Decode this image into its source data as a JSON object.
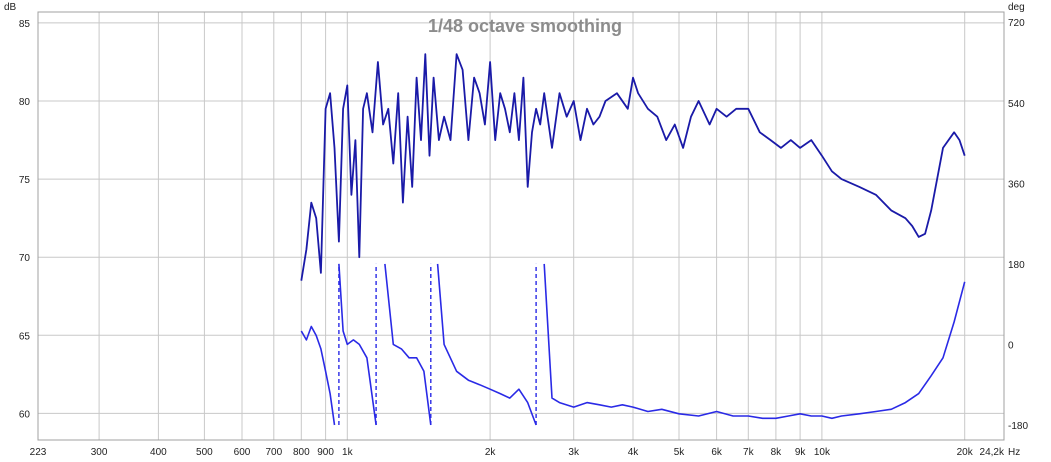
{
  "chart_data": {
    "type": "line",
    "title": "1/48 octave smoothing",
    "left_unit": "dB",
    "right_unit": "deg",
    "x_unit": "Hz",
    "x_scale": "log",
    "xlim": [
      223,
      24200
    ],
    "ylim_left": [
      58.3,
      85.7
    ],
    "ylim_right": [
      -213.6,
      742.8
    ],
    "left_ticks": [
      {
        "value": 60,
        "label": "60"
      },
      {
        "value": 65,
        "label": "65"
      },
      {
        "value": 70,
        "label": "70"
      },
      {
        "value": 75,
        "label": "75"
      },
      {
        "value": 80,
        "label": "80"
      },
      {
        "value": 85,
        "label": "85"
      }
    ],
    "right_ticks": [
      {
        "value": -180,
        "label": "-180"
      },
      {
        "value": 0,
        "label": "0"
      },
      {
        "value": 180,
        "label": "180"
      },
      {
        "value": 360,
        "label": "360"
      },
      {
        "value": 540,
        "label": "540"
      },
      {
        "value": 720,
        "label": "720"
      }
    ],
    "x_ticks": [
      {
        "value": 223,
        "label": "223"
      },
      {
        "value": 300,
        "label": "300"
      },
      {
        "value": 400,
        "label": "400"
      },
      {
        "value": 500,
        "label": "500"
      },
      {
        "value": 600,
        "label": "600"
      },
      {
        "value": 700,
        "label": "700"
      },
      {
        "value": 800,
        "label": "800"
      },
      {
        "value": 900,
        "label": "900"
      },
      {
        "value": 1000,
        "label": "1k"
      },
      {
        "value": 2000,
        "label": "2k"
      },
      {
        "value": 3000,
        "label": "3k"
      },
      {
        "value": 4000,
        "label": "4k"
      },
      {
        "value": 5000,
        "label": "5k"
      },
      {
        "value": 6000,
        "label": "6k"
      },
      {
        "value": 7000,
        "label": "7k"
      },
      {
        "value": 8000,
        "label": "8k"
      },
      {
        "value": 9000,
        "label": "9k"
      },
      {
        "value": 10000,
        "label": "10k"
      },
      {
        "value": 20000,
        "label": "20k"
      },
      {
        "value": 24200,
        "label": "24,2k"
      }
    ],
    "grid": true,
    "colors": {
      "magnitude": "#1a1aa8",
      "phase": "#2a2ae6",
      "grid": "#c8c8c8",
      "frame": "#a0a0a0"
    },
    "series": [
      {
        "id": "magnitude",
        "axis": "left",
        "x": [
          800,
          820,
          840,
          860,
          880,
          900,
          920,
          940,
          960,
          980,
          1000,
          1020,
          1040,
          1060,
          1080,
          1100,
          1130,
          1160,
          1190,
          1220,
          1250,
          1280,
          1310,
          1340,
          1370,
          1400,
          1430,
          1460,
          1490,
          1520,
          1560,
          1600,
          1650,
          1700,
          1750,
          1800,
          1850,
          1900,
          1950,
          2000,
          2050,
          2100,
          2150,
          2200,
          2250,
          2300,
          2350,
          2400,
          2450,
          2500,
          2550,
          2600,
          2700,
          2800,
          2900,
          3000,
          3100,
          3200,
          3300,
          3400,
          3500,
          3700,
          3900,
          4000,
          4100,
          4300,
          4500,
          4700,
          4900,
          5100,
          5300,
          5500,
          5800,
          6000,
          6300,
          6600,
          7000,
          7400,
          7800,
          8200,
          8600,
          9000,
          9500,
          10000,
          10500,
          11000,
          12000,
          13000,
          14000,
          15000,
          15500,
          16000,
          16500,
          17000,
          18000,
          19000,
          19500,
          20000
        ],
        "y": [
          68.5,
          70.5,
          73.5,
          72.5,
          69.0,
          79.5,
          80.5,
          77.0,
          71.0,
          79.5,
          81.0,
          74.0,
          77.5,
          70.0,
          79.5,
          80.5,
          78.0,
          82.5,
          78.5,
          79.5,
          76.0,
          80.5,
          73.5,
          79.0,
          74.5,
          81.5,
          77.5,
          83.0,
          76.5,
          81.5,
          77.5,
          79.0,
          77.5,
          83.0,
          82.0,
          77.5,
          81.5,
          80.5,
          78.5,
          82.5,
          77.5,
          80.5,
          79.5,
          78.0,
          80.5,
          77.5,
          81.5,
          74.5,
          78.0,
          79.5,
          78.5,
          80.5,
          77.0,
          80.5,
          79.0,
          80.0,
          77.5,
          79.5,
          78.5,
          79.0,
          80.0,
          80.5,
          79.5,
          81.5,
          80.5,
          79.5,
          79.0,
          77.5,
          78.5,
          77.0,
          79.0,
          80.0,
          78.5,
          79.5,
          79.0,
          79.5,
          79.5,
          78.0,
          77.5,
          77.0,
          77.5,
          77.0,
          77.5,
          76.5,
          75.5,
          75.0,
          74.5,
          74.0,
          73.0,
          72.5,
          72.0,
          71.3,
          71.5,
          73.0,
          77.0,
          78.0,
          77.5,
          76.5
        ]
      },
      {
        "id": "phase",
        "axis": "right",
        "style": "solid-with-dashed-wraps",
        "x": [
          800,
          820,
          840,
          860,
          880,
          900,
          920,
          940,
          960,
          980,
          1000,
          1030,
          1060,
          1100,
          1150,
          1200,
          1250,
          1300,
          1350,
          1400,
          1450,
          1500,
          1550,
          1600,
          1700,
          1800,
          1900,
          2000,
          2100,
          2200,
          2300,
          2400,
          2500,
          2600,
          2700,
          2800,
          3000,
          3200,
          3400,
          3600,
          3800,
          4000,
          4300,
          4600,
          5000,
          5500,
          6000,
          6500,
          7000,
          7500,
          8000,
          8500,
          9000,
          9500,
          10000,
          10500,
          11000,
          12000,
          13000,
          14000,
          15000,
          16000,
          17000,
          18000,
          19000,
          20000
        ],
        "y": [
          30,
          10,
          40,
          20,
          -10,
          -60,
          -110,
          -180,
          180,
          30,
          0,
          10,
          0,
          -30,
          -180,
          180,
          0,
          -10,
          -30,
          -30,
          -60,
          -180,
          180,
          0,
          -60,
          -80,
          -90,
          -100,
          -110,
          -120,
          -100,
          -130,
          -180,
          180,
          -120,
          -130,
          -140,
          -130,
          -135,
          -140,
          -135,
          -140,
          -150,
          -145,
          -155,
          -160,
          -150,
          -160,
          -160,
          -165,
          -165,
          -160,
          -155,
          -160,
          -160,
          -165,
          -160,
          -155,
          -150,
          -145,
          -130,
          -110,
          -70,
          -30,
          50,
          140
        ],
        "wraps": [
          {
            "x": 960,
            "from": -180,
            "to": 180
          },
          {
            "x": 1150,
            "from": -180,
            "to": 180
          },
          {
            "x": 1500,
            "from": -180,
            "to": 180
          },
          {
            "x": 2500,
            "from": -180,
            "to": 180
          }
        ]
      }
    ]
  }
}
